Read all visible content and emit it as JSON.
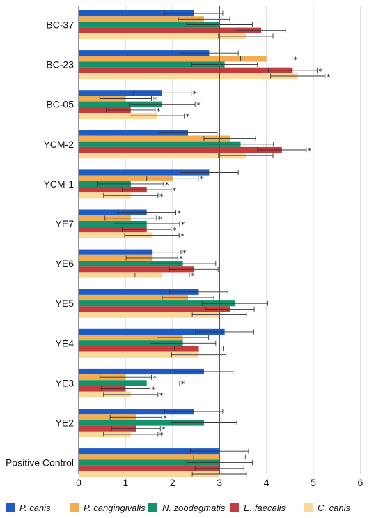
{
  "chart_data": {
    "type": "bar",
    "orientation": "horizontal",
    "title": "",
    "xlabel": "",
    "ylabel": "",
    "xlim": [
      0,
      6
    ],
    "x_ticks": [
      "0",
      "1",
      "2",
      "3",
      "4",
      "5",
      "6"
    ],
    "reference_line": {
      "x": 3,
      "color": "#d62020"
    },
    "grid": "vertical",
    "legend_position": "bottom",
    "categories": [
      "BC-37",
      "BC-23",
      "BC-05",
      "YCM-2",
      "YCM-1",
      "YE7",
      "YE6",
      "YE5",
      "YE4",
      "YE3",
      "YE2",
      "Positive Control"
    ],
    "series": [
      {
        "name": "P. canis",
        "color": "#1f5bc4",
        "values": [
          2.45,
          2.78,
          1.78,
          2.33,
          2.78,
          1.45,
          1.56,
          2.56,
          3.11,
          2.67,
          2.45,
          3.0
        ],
        "errors": [
          0.62,
          0.62,
          0.62,
          0.62,
          0.62,
          0.62,
          0.62,
          0.62,
          0.62,
          0.62,
          0.62,
          0.62
        ],
        "significant": [
          false,
          false,
          true,
          false,
          false,
          true,
          true,
          false,
          false,
          false,
          false,
          false
        ]
      },
      {
        "name": "P. cangingivalis",
        "color": "#f2ad52",
        "values": [
          2.67,
          4.0,
          1.0,
          3.22,
          2.0,
          1.11,
          1.56,
          2.33,
          2.22,
          1.0,
          1.22,
          3.0
        ],
        "errors": [
          0.55,
          0.55,
          0.55,
          0.55,
          0.55,
          0.55,
          0.55,
          0.55,
          0.55,
          0.55,
          0.55,
          0.55
        ],
        "significant": [
          false,
          true,
          true,
          false,
          true,
          true,
          true,
          false,
          false,
          true,
          true,
          false
        ]
      },
      {
        "name": "N. zoodegmatis",
        "color": "#14936b",
        "values": [
          3.0,
          3.11,
          1.78,
          3.45,
          1.11,
          1.45,
          2.22,
          3.33,
          2.22,
          1.45,
          2.67,
          3.0
        ],
        "errors": [
          0.7,
          0.7,
          0.7,
          0.7,
          0.7,
          0.7,
          0.7,
          0.7,
          0.7,
          0.7,
          0.7,
          0.7
        ],
        "significant": [
          false,
          false,
          true,
          false,
          true,
          true,
          false,
          false,
          false,
          true,
          false,
          false
        ]
      },
      {
        "name": "E. faecalis",
        "color": "#c23d3d",
        "values": [
          3.89,
          4.56,
          1.11,
          4.33,
          1.45,
          1.45,
          2.45,
          3.22,
          2.56,
          1.0,
          1.22,
          3.0
        ],
        "errors": [
          0.52,
          0.52,
          0.52,
          0.52,
          0.52,
          0.52,
          0.52,
          0.52,
          0.52,
          0.52,
          0.52,
          0.52
        ],
        "significant": [
          false,
          true,
          true,
          true,
          true,
          true,
          false,
          false,
          false,
          true,
          true,
          false
        ]
      },
      {
        "name": "C. canis",
        "color": "#fcd99a",
        "values": [
          3.56,
          4.67,
          1.67,
          3.56,
          1.11,
          1.56,
          1.78,
          3.0,
          2.56,
          1.11,
          1.11,
          3.0
        ],
        "errors": [
          0.58,
          0.58,
          0.58,
          0.58,
          0.58,
          0.58,
          0.58,
          0.58,
          0.58,
          0.58,
          0.58,
          0.58
        ],
        "significant": [
          false,
          true,
          true,
          false,
          true,
          true,
          true,
          false,
          false,
          true,
          true,
          false
        ]
      }
    ],
    "significance_marker": "*"
  }
}
